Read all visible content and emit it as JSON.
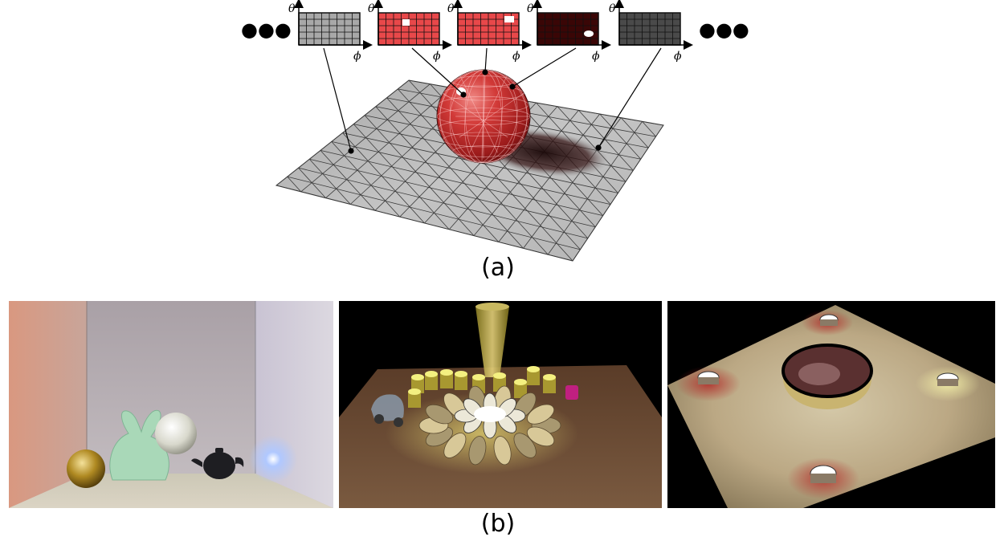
{
  "figure": {
    "part_a": {
      "caption": "(a)",
      "map_theta_label": "θ",
      "map_phi_label": "ϕ",
      "ellipsis_left": "●●●",
      "ellipsis_right": "●●●",
      "maps": [
        {
          "kind": "gray-light",
          "color": "#a8a8a8"
        },
        {
          "kind": "red-highlight",
          "color": "#e8484a"
        },
        {
          "kind": "red-highlight-2",
          "color": "#e8484a"
        },
        {
          "kind": "dark-red",
          "color": "#3a0606"
        },
        {
          "kind": "gray-dark",
          "color": "#4a4a4a"
        }
      ]
    },
    "part_b": {
      "caption": "(b)",
      "renders": [
        {
          "name": "cornell-box"
        },
        {
          "name": "flower-table"
        },
        {
          "name": "four-lights-plane"
        }
      ]
    },
    "colors": {
      "sphere_red": "#c0282a",
      "plane_gray": "#b5b5b5",
      "map_red": "#e8484a"
    }
  }
}
